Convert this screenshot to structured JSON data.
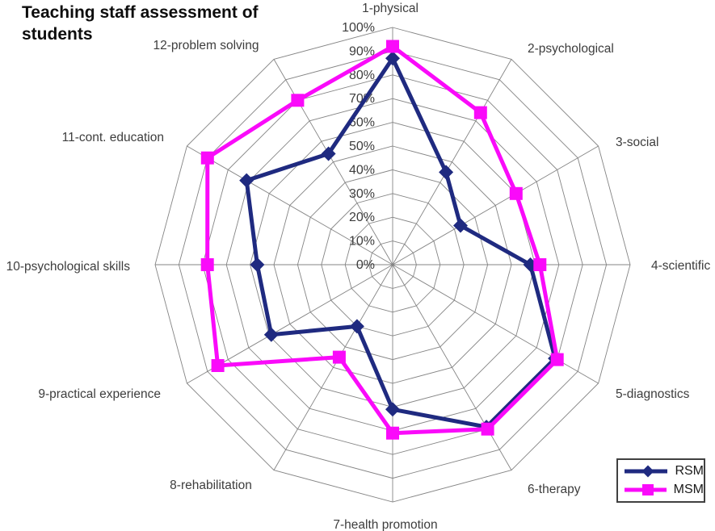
{
  "title": "Teaching staff assessment of students",
  "chart_data": {
    "type": "radar",
    "categories": [
      "1-physical",
      "2-psychological",
      "3-social",
      "4-scientific",
      "5-diagnostics",
      "6-therapy",
      "7-health promotion",
      "8-rehabilitation",
      "9-practical experience",
      "10-psychological skills",
      "11-cont. education",
      "12-problem solving"
    ],
    "series": [
      {
        "name": "RSM",
        "marker": "diamond",
        "color": "#1F2A80",
        "values": [
          87,
          45,
          33,
          58,
          79,
          79,
          61,
          30,
          59,
          57,
          71,
          54
        ]
      },
      {
        "name": "MSM",
        "marker": "square",
        "color": "#FA0AFA",
        "values": [
          92,
          74,
          60,
          62,
          80,
          80,
          71,
          45,
          85,
          78,
          90,
          80
        ]
      }
    ],
    "radial_axis": {
      "min": 0,
      "max": 100,
      "step": 10,
      "tick_labels": [
        "0%",
        "10%",
        "20%",
        "30%",
        "40%",
        "50%",
        "60%",
        "70%",
        "80%",
        "90%",
        "100%"
      ]
    },
    "grid": true,
    "legend_position": "bottom-right",
    "colors": {
      "gridline": "#848484",
      "label_text": "#3d3d3d"
    }
  }
}
